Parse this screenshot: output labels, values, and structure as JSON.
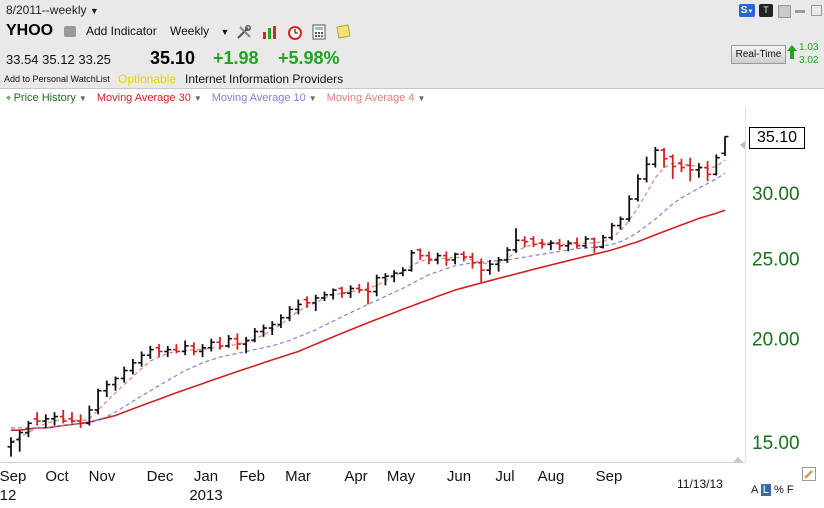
{
  "header": {
    "period": "8/2011--weekly",
    "symbol": "YHOO",
    "add_indicator": "Add Indicator",
    "interval": "Weekly",
    "open": "33.54",
    "high": "35.12",
    "low": "33.25",
    "last": "35.10",
    "change": "+1.98",
    "change_pct": "+5.98%",
    "watchlist": "Add to Personal WatchList",
    "optionable": "Optionable",
    "industry": "Internet Information Providers",
    "realtime_label": "Real-Time",
    "realtime_v1": "1.03",
    "realtime_v2": "3.02",
    "icons": [
      "print-icon",
      "tools-icon",
      "chart-icon",
      "alarm-icon",
      "calculator-icon",
      "note-icon"
    ]
  },
  "window_buttons": {
    "s_label": "S",
    "t_label": "T"
  },
  "indicators": [
    {
      "label": "Price History",
      "color": "#1a6e1a"
    },
    {
      "label": "Moving Average 30",
      "color": "#d42020"
    },
    {
      "label": "Moving Average 10",
      "color": "#8080e0"
    },
    {
      "label": "Moving Average 4",
      "color": "#e08080"
    }
  ],
  "last_price_box": "35.10",
  "date_label": "11/13/13",
  "scale_options": {
    "a": "A",
    "l": "L",
    "p": "%",
    "f": "F"
  },
  "chart_data": {
    "type": "ohlc",
    "y_axis": {
      "ticks": [
        15.0,
        20.0,
        25.0,
        30.0
      ],
      "tick_labels": [
        "15.00",
        "20.00",
        "25.00",
        "30.00"
      ],
      "range": [
        14.0,
        36.5
      ],
      "scale": "log"
    },
    "x_axis": {
      "months": [
        "Sep",
        "Oct",
        "Nov",
        "Dec",
        "Jan",
        "Feb",
        "Mar",
        "Apr",
        "May",
        "Jun",
        "Jul",
        "Aug",
        "Sep"
      ],
      "years": [
        "12",
        "2013"
      ]
    },
    "bars": [
      {
        "o": 14.8,
        "h": 15.2,
        "l": 14.4,
        "c": 15.0,
        "up": true
      },
      {
        "o": 15.1,
        "h": 15.5,
        "l": 14.6,
        "c": 15.4,
        "up": true
      },
      {
        "o": 15.4,
        "h": 15.9,
        "l": 15.2,
        "c": 15.8,
        "up": true
      },
      {
        "o": 16.0,
        "h": 16.3,
        "l": 15.7,
        "c": 15.9,
        "up": false
      },
      {
        "o": 15.9,
        "h": 16.2,
        "l": 15.6,
        "c": 16.0,
        "up": true
      },
      {
        "o": 16.0,
        "h": 16.3,
        "l": 15.7,
        "c": 16.1,
        "up": true
      },
      {
        "o": 16.1,
        "h": 16.4,
        "l": 15.8,
        "c": 15.9,
        "up": false
      },
      {
        "o": 16.0,
        "h": 16.3,
        "l": 15.8,
        "c": 15.9,
        "up": false
      },
      {
        "o": 15.9,
        "h": 16.2,
        "l": 15.6,
        "c": 15.8,
        "up": false
      },
      {
        "o": 15.8,
        "h": 16.6,
        "l": 15.7,
        "c": 16.4,
        "up": true
      },
      {
        "o": 16.4,
        "h": 17.4,
        "l": 16.2,
        "c": 17.3,
        "up": true
      },
      {
        "o": 17.3,
        "h": 17.8,
        "l": 17.0,
        "c": 17.6,
        "up": true
      },
      {
        "o": 17.6,
        "h": 18.0,
        "l": 17.3,
        "c": 17.9,
        "up": true
      },
      {
        "o": 17.9,
        "h": 18.5,
        "l": 17.7,
        "c": 18.3,
        "up": true
      },
      {
        "o": 18.3,
        "h": 18.9,
        "l": 18.1,
        "c": 18.7,
        "up": true
      },
      {
        "o": 18.7,
        "h": 19.3,
        "l": 18.5,
        "c": 19.1,
        "up": true
      },
      {
        "o": 19.1,
        "h": 19.6,
        "l": 18.9,
        "c": 19.4,
        "up": true
      },
      {
        "o": 19.5,
        "h": 19.7,
        "l": 19.0,
        "c": 19.3,
        "up": false
      },
      {
        "o": 19.3,
        "h": 19.6,
        "l": 19.0,
        "c": 19.4,
        "up": true
      },
      {
        "o": 19.4,
        "h": 19.7,
        "l": 19.2,
        "c": 19.3,
        "up": false
      },
      {
        "o": 19.3,
        "h": 19.9,
        "l": 19.1,
        "c": 19.6,
        "up": true
      },
      {
        "o": 19.6,
        "h": 19.8,
        "l": 19.1,
        "c": 19.3,
        "up": false
      },
      {
        "o": 19.3,
        "h": 19.7,
        "l": 19.0,
        "c": 19.5,
        "up": true
      },
      {
        "o": 19.5,
        "h": 20.0,
        "l": 19.3,
        "c": 19.8,
        "up": true
      },
      {
        "o": 19.8,
        "h": 20.1,
        "l": 19.4,
        "c": 19.6,
        "up": false
      },
      {
        "o": 19.6,
        "h": 20.2,
        "l": 19.5,
        "c": 20.0,
        "up": true
      },
      {
        "o": 20.0,
        "h": 20.3,
        "l": 19.4,
        "c": 19.7,
        "up": false
      },
      {
        "o": 19.7,
        "h": 20.1,
        "l": 19.2,
        "c": 19.9,
        "up": true
      },
      {
        "o": 19.9,
        "h": 20.6,
        "l": 19.8,
        "c": 20.4,
        "up": true
      },
      {
        "o": 20.4,
        "h": 20.8,
        "l": 20.1,
        "c": 20.6,
        "up": true
      },
      {
        "o": 20.6,
        "h": 21.0,
        "l": 20.2,
        "c": 20.8,
        "up": true
      },
      {
        "o": 20.8,
        "h": 21.4,
        "l": 20.6,
        "c": 21.2,
        "up": true
      },
      {
        "o": 21.2,
        "h": 21.9,
        "l": 21.0,
        "c": 21.7,
        "up": true
      },
      {
        "o": 21.7,
        "h": 22.3,
        "l": 21.4,
        "c": 22.0,
        "up": true
      },
      {
        "o": 22.3,
        "h": 22.5,
        "l": 21.8,
        "c": 22.1,
        "up": false
      },
      {
        "o": 22.1,
        "h": 22.6,
        "l": 21.6,
        "c": 22.4,
        "up": true
      },
      {
        "o": 22.4,
        "h": 22.8,
        "l": 22.2,
        "c": 22.6,
        "up": true
      },
      {
        "o": 22.6,
        "h": 23.0,
        "l": 22.3,
        "c": 22.9,
        "up": true
      },
      {
        "o": 23.0,
        "h": 23.1,
        "l": 22.4,
        "c": 22.7,
        "up": false
      },
      {
        "o": 22.7,
        "h": 23.2,
        "l": 22.4,
        "c": 23.0,
        "up": true
      },
      {
        "o": 23.0,
        "h": 23.3,
        "l": 22.7,
        "c": 22.9,
        "up": false
      },
      {
        "o": 22.9,
        "h": 23.4,
        "l": 22.0,
        "c": 22.8,
        "up": false
      },
      {
        "o": 22.8,
        "h": 23.9,
        "l": 22.5,
        "c": 23.7,
        "up": true
      },
      {
        "o": 23.7,
        "h": 24.0,
        "l": 23.2,
        "c": 23.8,
        "up": true
      },
      {
        "o": 23.8,
        "h": 24.2,
        "l": 23.4,
        "c": 24.0,
        "up": true
      },
      {
        "o": 24.0,
        "h": 24.4,
        "l": 23.8,
        "c": 24.2,
        "up": true
      },
      {
        "o": 24.2,
        "h": 25.6,
        "l": 24.1,
        "c": 25.4,
        "up": true
      },
      {
        "o": 25.6,
        "h": 25.7,
        "l": 24.9,
        "c": 25.2,
        "up": false
      },
      {
        "o": 25.2,
        "h": 25.5,
        "l": 24.6,
        "c": 24.9,
        "up": false
      },
      {
        "o": 24.9,
        "h": 25.4,
        "l": 24.6,
        "c": 25.2,
        "up": true
      },
      {
        "o": 25.2,
        "h": 25.5,
        "l": 24.5,
        "c": 24.9,
        "up": false
      },
      {
        "o": 24.9,
        "h": 25.4,
        "l": 24.6,
        "c": 25.3,
        "up": true
      },
      {
        "o": 25.3,
        "h": 25.5,
        "l": 24.8,
        "c": 25.1,
        "up": false
      },
      {
        "o": 25.1,
        "h": 25.4,
        "l": 24.3,
        "c": 24.7,
        "up": false
      },
      {
        "o": 24.7,
        "h": 25.0,
        "l": 23.4,
        "c": 24.2,
        "up": false
      },
      {
        "o": 24.2,
        "h": 24.9,
        "l": 23.9,
        "c": 24.6,
        "up": true
      },
      {
        "o": 24.6,
        "h": 25.1,
        "l": 24.1,
        "c": 24.9,
        "up": true
      },
      {
        "o": 24.9,
        "h": 25.8,
        "l": 24.7,
        "c": 25.6,
        "up": true
      },
      {
        "o": 25.6,
        "h": 27.2,
        "l": 25.4,
        "c": 26.3,
        "up": true
      },
      {
        "o": 26.3,
        "h": 26.6,
        "l": 25.8,
        "c": 26.2,
        "up": false
      },
      {
        "o": 26.4,
        "h": 26.6,
        "l": 25.8,
        "c": 26.0,
        "up": false
      },
      {
        "o": 26.1,
        "h": 26.4,
        "l": 25.7,
        "c": 26.0,
        "up": false
      },
      {
        "o": 26.0,
        "h": 26.3,
        "l": 25.6,
        "c": 26.1,
        "up": true
      },
      {
        "o": 26.1,
        "h": 26.4,
        "l": 25.6,
        "c": 25.9,
        "up": false
      },
      {
        "o": 25.9,
        "h": 26.3,
        "l": 25.5,
        "c": 26.1,
        "up": true
      },
      {
        "o": 26.1,
        "h": 26.5,
        "l": 25.7,
        "c": 25.9,
        "up": false
      },
      {
        "o": 25.9,
        "h": 26.6,
        "l": 25.7,
        "c": 26.4,
        "up": true
      },
      {
        "o": 26.4,
        "h": 26.5,
        "l": 25.4,
        "c": 25.8,
        "up": false
      },
      {
        "o": 25.8,
        "h": 26.7,
        "l": 25.7,
        "c": 26.5,
        "up": true
      },
      {
        "o": 26.5,
        "h": 27.6,
        "l": 26.3,
        "c": 27.4,
        "up": true
      },
      {
        "o": 27.4,
        "h": 28.1,
        "l": 27.1,
        "c": 27.9,
        "up": true
      },
      {
        "o": 27.9,
        "h": 29.8,
        "l": 27.7,
        "c": 29.5,
        "up": true
      },
      {
        "o": 29.5,
        "h": 31.6,
        "l": 29.3,
        "c": 31.2,
        "up": true
      },
      {
        "o": 31.2,
        "h": 33.2,
        "l": 30.9,
        "c": 32.5,
        "up": true
      },
      {
        "o": 32.5,
        "h": 34.1,
        "l": 32.2,
        "c": 33.8,
        "up": true
      },
      {
        "o": 33.8,
        "h": 34.0,
        "l": 32.2,
        "c": 33.0,
        "up": false
      },
      {
        "o": 33.2,
        "h": 33.4,
        "l": 31.2,
        "c": 32.3,
        "up": false
      },
      {
        "o": 32.6,
        "h": 33.0,
        "l": 31.8,
        "c": 32.2,
        "up": false
      },
      {
        "o": 32.4,
        "h": 33.1,
        "l": 31.0,
        "c": 32.0,
        "up": false
      },
      {
        "o": 32.0,
        "h": 32.6,
        "l": 31.3,
        "c": 32.2,
        "up": true
      },
      {
        "o": 32.2,
        "h": 32.8,
        "l": 31.0,
        "c": 31.6,
        "up": false
      },
      {
        "o": 31.6,
        "h": 33.4,
        "l": 31.5,
        "c": 33.1,
        "up": true
      },
      {
        "o": 33.5,
        "h": 35.12,
        "l": 33.25,
        "c": 35.1,
        "up": true
      }
    ],
    "series": [
      {
        "name": "Moving Average 30",
        "values": [
          15.5,
          15.5,
          15.55,
          15.6,
          15.6,
          15.65,
          15.7,
          15.75,
          15.8,
          15.85,
          15.95,
          16.05,
          16.15,
          16.3,
          16.45,
          16.6,
          16.75,
          16.9,
          17.05,
          17.2,
          17.35,
          17.5,
          17.65,
          17.8,
          17.95,
          18.1,
          18.25,
          18.4,
          18.55,
          18.7,
          18.85,
          19.0,
          19.15,
          19.3,
          19.5,
          19.7,
          19.9,
          20.1,
          20.3,
          20.5,
          20.7,
          20.9,
          21.1,
          21.3,
          21.5,
          21.7,
          21.9,
          22.1,
          22.3,
          22.5,
          22.7,
          22.9,
          23.05,
          23.2,
          23.35,
          23.5,
          23.65,
          23.8,
          23.95,
          24.1,
          24.25,
          24.4,
          24.55,
          24.7,
          24.85,
          25.0,
          25.15,
          25.3,
          25.45,
          25.6,
          25.8,
          26.0,
          26.2,
          26.45,
          26.7,
          26.95,
          27.2,
          27.45,
          27.7,
          27.95,
          28.15,
          28.35,
          28.6
        ]
      },
      {
        "name": "Moving Average 10",
        "values": [
          15.6,
          15.6,
          15.6,
          15.6,
          15.6,
          15.65,
          15.7,
          15.75,
          15.8,
          15.85,
          15.95,
          16.1,
          16.3,
          16.55,
          16.8,
          17.05,
          17.3,
          17.55,
          17.8,
          18.05,
          18.3,
          18.5,
          18.7,
          18.85,
          19.0,
          19.1,
          19.2,
          19.3,
          19.4,
          19.5,
          19.6,
          19.75,
          19.9,
          20.1,
          20.3,
          20.5,
          20.75,
          21.0,
          21.25,
          21.5,
          21.75,
          22.0,
          22.25,
          22.5,
          22.75,
          23.0,
          23.3,
          23.6,
          23.9,
          24.1,
          24.3,
          24.5,
          24.6,
          24.7,
          24.75,
          24.8,
          24.85,
          24.9,
          25.0,
          25.1,
          25.2,
          25.3,
          25.4,
          25.5,
          25.6,
          25.7,
          25.75,
          25.8,
          25.9,
          26.0,
          26.2,
          26.5,
          26.9,
          27.4,
          27.9,
          28.5,
          29.1,
          29.6,
          30.0,
          30.4,
          30.8,
          31.2,
          31.7
        ]
      },
      {
        "name": "Moving Average 4",
        "values": [
          15.0,
          15.2,
          15.4,
          15.6,
          15.8,
          15.9,
          16.0,
          16.0,
          15.9,
          16.0,
          16.4,
          16.8,
          17.2,
          17.6,
          18.0,
          18.4,
          18.8,
          19.0,
          19.2,
          19.3,
          19.35,
          19.4,
          19.4,
          19.5,
          19.5,
          19.6,
          19.7,
          19.8,
          20.0,
          20.2,
          20.5,
          20.8,
          21.2,
          21.6,
          21.9,
          22.1,
          22.4,
          22.6,
          22.7,
          22.8,
          22.9,
          23.0,
          23.2,
          23.5,
          23.8,
          24.1,
          24.5,
          24.8,
          25.0,
          25.0,
          25.0,
          25.1,
          25.0,
          24.9,
          24.7,
          24.6,
          24.7,
          25.0,
          25.5,
          25.8,
          26.0,
          26.1,
          26.1,
          26.0,
          26.0,
          26.0,
          26.1,
          26.1,
          26.2,
          26.5,
          27.0,
          27.8,
          28.8,
          30.0,
          31.3,
          32.2,
          32.6,
          32.5,
          32.4,
          32.3,
          32.1,
          32.3,
          32.9
        ]
      }
    ]
  }
}
